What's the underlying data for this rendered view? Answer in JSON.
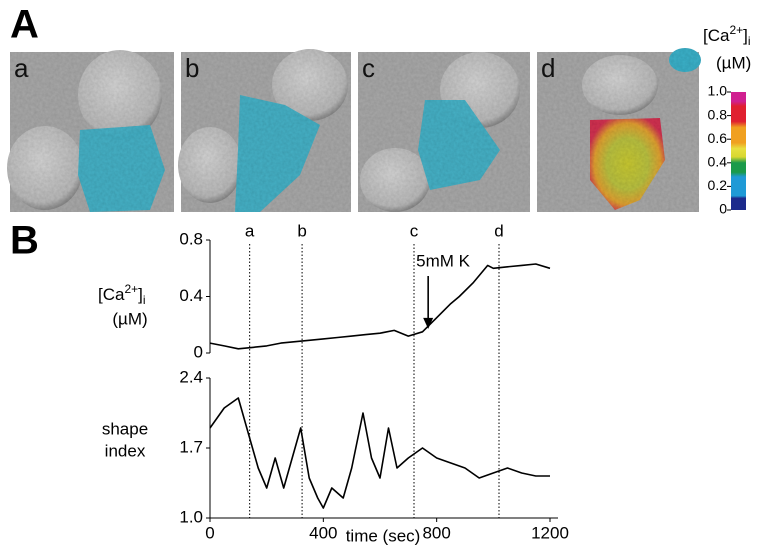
{
  "figure_labels": [
    "A",
    "B"
  ],
  "images": [
    {
      "label": "a"
    },
    {
      "label": "b"
    },
    {
      "label": "c"
    },
    {
      "label": "d"
    }
  ],
  "colorbar": {
    "title": {
      "base": "[Ca",
      "sup": "2+",
      "close": "]",
      "sub": "i"
    },
    "unit": "(µM)",
    "lim": [
      0,
      1
    ],
    "ticks": [
      {
        "value": 1,
        "label": "1.0"
      },
      0.8,
      0.6,
      0.4,
      0.2,
      0
    ]
  },
  "events": [
    {
      "label": "a",
      "x": 140
    },
    {
      "label": "b",
      "x": 325
    },
    {
      "label": "c",
      "x": 720
    },
    {
      "label": "d",
      "x": 1020
    }
  ],
  "chart_data": [
    {
      "type": "line",
      "ylabel": {
        "base": "[Ca",
        "sup": "2+",
        "close": "]",
        "sub": "i",
        "unit": "(µM)"
      },
      "xlim": [
        0,
        1200
      ],
      "ylim": [
        0,
        0.8
      ],
      "yticks": [
        0,
        0.4,
        0.8
      ],
      "x": [
        0,
        50,
        100,
        150,
        200,
        250,
        300,
        350,
        400,
        450,
        500,
        550,
        600,
        650,
        700,
        750,
        800,
        850,
        880,
        930,
        980,
        1000,
        1050,
        1100,
        1150,
        1200
      ],
      "series": [
        {
          "color": "#000000",
          "values": [
            0.07,
            0.05,
            0.03,
            0.04,
            0.05,
            0.07,
            0.08,
            0.09,
            0.1,
            0.11,
            0.12,
            0.13,
            0.14,
            0.16,
            0.12,
            0.15,
            0.25,
            0.35,
            0.4,
            0.5,
            0.62,
            0.6,
            0.61,
            0.62,
            0.63,
            0.6
          ]
        }
      ],
      "annotation": {
        "text": "5mM K",
        "x": 770,
        "y": 0.15
      }
    },
    {
      "type": "line",
      "ylabel": [
        "shape",
        "index"
      ],
      "xlabel": "time (sec)",
      "xlim": [
        0,
        1200
      ],
      "xticks": [
        0,
        400,
        800,
        1200
      ],
      "ylim": [
        1.0,
        2.4
      ],
      "yticks": [
        {
          "value": 1.0,
          "label": "1.0"
        },
        1.7,
        2.4
      ],
      "x": [
        0,
        50,
        100,
        130,
        170,
        200,
        230,
        260,
        290,
        320,
        350,
        380,
        400,
        430,
        470,
        500,
        540,
        570,
        600,
        630,
        660,
        700,
        750,
        800,
        850,
        900,
        950,
        1000,
        1050,
        1100,
        1150,
        1200
      ],
      "series": [
        {
          "color": "#000000",
          "values": [
            1.9,
            2.1,
            2.2,
            1.9,
            1.5,
            1.3,
            1.6,
            1.3,
            1.6,
            1.9,
            1.4,
            1.2,
            1.1,
            1.3,
            1.2,
            1.5,
            2.05,
            1.6,
            1.4,
            1.9,
            1.5,
            1.6,
            1.7,
            1.6,
            1.55,
            1.5,
            1.4,
            1.45,
            1.5,
            1.45,
            1.42,
            1.42
          ]
        }
      ]
    }
  ]
}
